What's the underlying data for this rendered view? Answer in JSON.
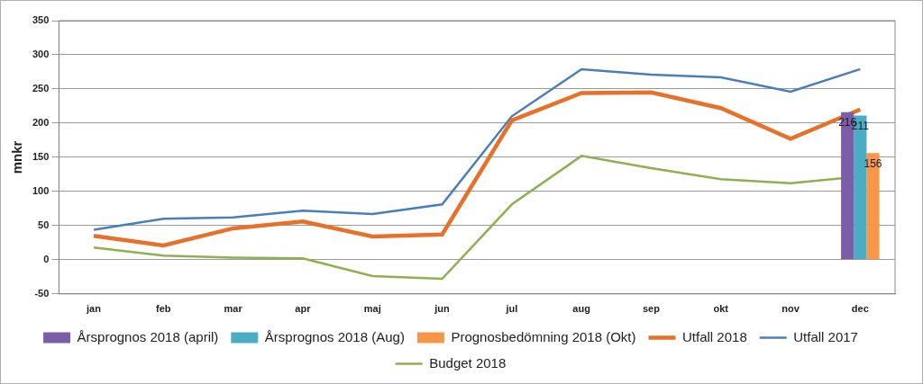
{
  "chart_data": {
    "type": "bar",
    "y_label": "mnkr",
    "categories": [
      "jan",
      "feb",
      "mar",
      "apr",
      "maj",
      "jun",
      "jul",
      "aug",
      "sep",
      "okt",
      "nov",
      "dec"
    ],
    "ylim": [
      -50,
      350
    ],
    "yticks": [
      -50,
      0,
      50,
      100,
      150,
      200,
      250,
      300,
      350
    ],
    "grid": true,
    "legend": "bottom",
    "series": [
      {
        "name": "Årsprognos 2018 (april)",
        "type": "bar",
        "color": "#7b5ea7",
        "data_labels": true,
        "values": [
          null,
          null,
          null,
          null,
          null,
          null,
          null,
          null,
          null,
          null,
          null,
          216
        ]
      },
      {
        "name": "Årsprognos 2018 (Aug)",
        "type": "bar",
        "color": "#4bacc6",
        "data_labels": true,
        "values": [
          null,
          null,
          null,
          null,
          null,
          null,
          null,
          null,
          null,
          null,
          null,
          211
        ]
      },
      {
        "name": "Prognosbedömning 2018 (Okt)",
        "type": "bar",
        "color": "#f79646",
        "data_labels": true,
        "values": [
          null,
          null,
          null,
          null,
          null,
          null,
          null,
          null,
          null,
          null,
          null,
          156
        ]
      },
      {
        "name": "Utfall 2018",
        "type": "line",
        "color": "#e8712a",
        "marker": "none",
        "line_style": "bold",
        "values": [
          35,
          21,
          46,
          56,
          34,
          37,
          204,
          244,
          245,
          222,
          177,
          220
        ]
      },
      {
        "name": "Utfall 2017",
        "type": "line",
        "color": "#4a7ebb",
        "marker": "none",
        "line_style": "solid",
        "values": [
          44,
          60,
          62,
          72,
          67,
          81,
          210,
          279,
          271,
          267,
          246,
          279
        ]
      },
      {
        "name": "Budget 2018",
        "type": "line",
        "color": "#8db050",
        "marker": "none",
        "line_style": "solid",
        "values": [
          18,
          6,
          3,
          2,
          -24,
          -28,
          81,
          152,
          134,
          118,
          112,
          122
        ]
      }
    ]
  }
}
